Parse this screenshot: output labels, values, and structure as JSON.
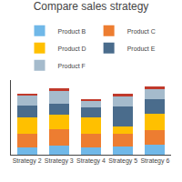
{
  "chart_data": {
    "type": "bar",
    "title": "Compare sales strategy",
    "categories": [
      "Strategy 2",
      "Strategy 3",
      "Strategy 4",
      "Strategy 5",
      "Strategy 6"
    ],
    "series": [
      {
        "name": "Product B",
        "color": "#70B8E8",
        "values": [
          1.2,
          1.6,
          1.2,
          1.5,
          1.8
        ]
      },
      {
        "name": "Product C",
        "color": "#ED7D31",
        "values": [
          2.5,
          2.8,
          2.5,
          2.2,
          2.5
        ]
      },
      {
        "name": "Product D",
        "color": "#FFC000",
        "values": [
          2.8,
          2.5,
          2.8,
          1.2,
          2.8
        ]
      },
      {
        "name": "Product E",
        "color": "#4A6C8C",
        "values": [
          2.0,
          2.0,
          1.8,
          3.5,
          2.5
        ]
      },
      {
        "name": "Product F",
        "color": "#A5BBCC",
        "values": [
          1.8,
          2.2,
          1.2,
          1.8,
          1.8
        ]
      },
      {
        "color": "#C0392B",
        "values": [
          0.35,
          0.5,
          0.25,
          0.35,
          0.45
        ]
      }
    ],
    "stacked": true,
    "ylim": [
      0,
      13
    ],
    "yticks": [],
    "tick_labels": "x",
    "grid": false,
    "legend": "top"
  }
}
